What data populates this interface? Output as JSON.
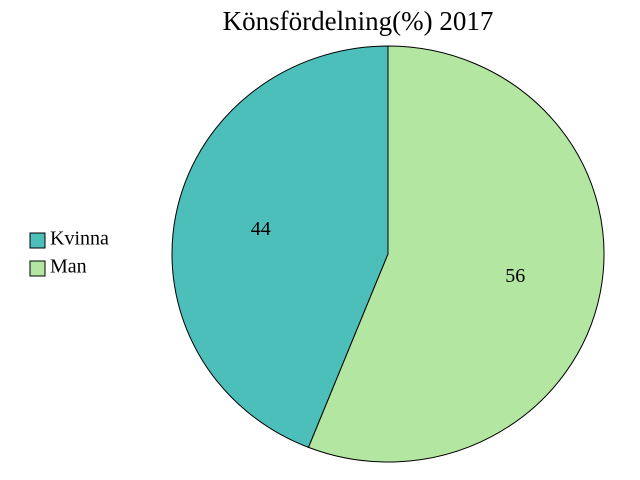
{
  "chart_data": {
    "type": "pie",
    "title": "Könsfördelning(%) 2017",
    "categories": [
      "Kvinna",
      "Man"
    ],
    "values": [
      44,
      56
    ],
    "colors": [
      "#4dbfbb",
      "#b3e6a0"
    ],
    "legend": "left"
  }
}
